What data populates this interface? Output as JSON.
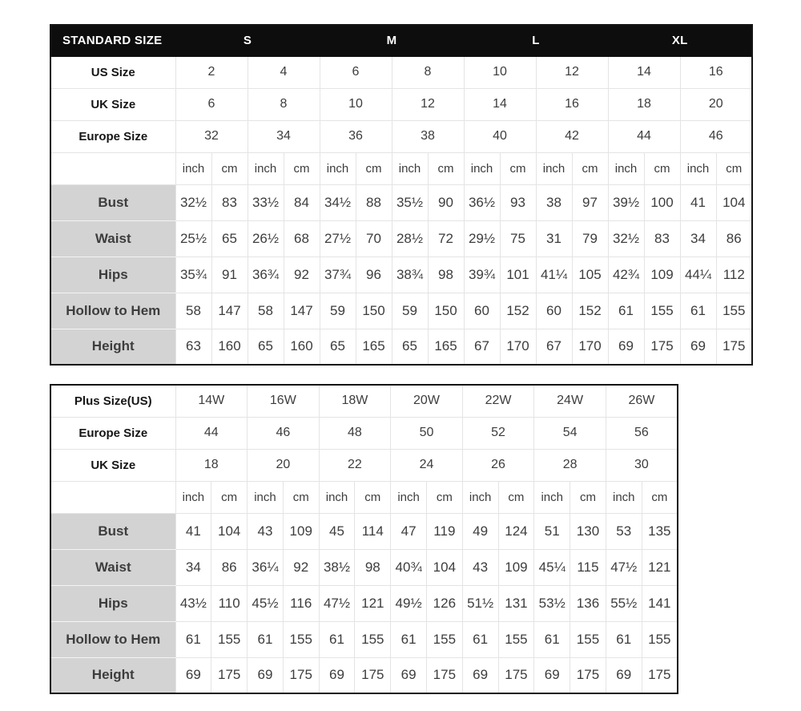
{
  "colors": {
    "header_bg": "#0d0d0d",
    "header_text": "#ffffff",
    "label_bg": "#d3d3d3",
    "label_text": "#161616",
    "value_text": "#3d3d3d",
    "grid_line": "#e4e4e4",
    "outer_border": "#141414"
  },
  "standard_table": {
    "title": "STANDARD SIZE",
    "size_groups": [
      "S",
      "M",
      "L",
      "XL"
    ],
    "size_rows": [
      {
        "label": "US Size",
        "values": [
          "2",
          "4",
          "6",
          "8",
          "10",
          "12",
          "14",
          "16"
        ]
      },
      {
        "label": "UK Size",
        "values": [
          "6",
          "8",
          "10",
          "12",
          "14",
          "16",
          "18",
          "20"
        ]
      },
      {
        "label": "Europe Size",
        "values": [
          "32",
          "34",
          "36",
          "38",
          "40",
          "42",
          "44",
          "46"
        ]
      }
    ],
    "units": [
      "inch",
      "cm"
    ],
    "measure_rows": [
      {
        "label": "Bust",
        "values": [
          "32½",
          "83",
          "33½",
          "84",
          "34½",
          "88",
          "35½",
          "90",
          "36½",
          "93",
          "38",
          "97",
          "39½",
          "100",
          "41",
          "104"
        ]
      },
      {
        "label": "Waist",
        "values": [
          "25½",
          "65",
          "26½",
          "68",
          "27½",
          "70",
          "28½",
          "72",
          "29½",
          "75",
          "31",
          "79",
          "32½",
          "83",
          "34",
          "86"
        ]
      },
      {
        "label": "Hips",
        "values": [
          "35¾",
          "91",
          "36¾",
          "92",
          "37¾",
          "96",
          "38¾",
          "98",
          "39¾",
          "101",
          "41¼",
          "105",
          "42¾",
          "109",
          "44¼",
          "112"
        ]
      },
      {
        "label": "Hollow to Hem",
        "values": [
          "58",
          "147",
          "58",
          "147",
          "59",
          "150",
          "59",
          "150",
          "60",
          "152",
          "60",
          "152",
          "61",
          "155",
          "61",
          "155"
        ]
      },
      {
        "label": "Height",
        "values": [
          "63",
          "160",
          "65",
          "160",
          "65",
          "165",
          "65",
          "165",
          "67",
          "170",
          "67",
          "170",
          "69",
          "175",
          "69",
          "175"
        ]
      }
    ]
  },
  "plus_table": {
    "size_rows": [
      {
        "label": "Plus Size(US)",
        "values": [
          "14W",
          "16W",
          "18W",
          "20W",
          "22W",
          "24W",
          "26W"
        ]
      },
      {
        "label": "Europe Size",
        "values": [
          "44",
          "46",
          "48",
          "50",
          "52",
          "54",
          "56"
        ]
      },
      {
        "label": "UK Size",
        "values": [
          "18",
          "20",
          "22",
          "24",
          "26",
          "28",
          "30"
        ]
      }
    ],
    "units": [
      "inch",
      "cm"
    ],
    "measure_rows": [
      {
        "label": "Bust",
        "values": [
          "41",
          "104",
          "43",
          "109",
          "45",
          "114",
          "47",
          "119",
          "49",
          "124",
          "51",
          "130",
          "53",
          "135"
        ]
      },
      {
        "label": "Waist",
        "values": [
          "34",
          "86",
          "36¼",
          "92",
          "38½",
          "98",
          "40¾",
          "104",
          "43",
          "109",
          "45¼",
          "115",
          "47½",
          "121"
        ]
      },
      {
        "label": "Hips",
        "values": [
          "43½",
          "110",
          "45½",
          "116",
          "47½",
          "121",
          "49½",
          "126",
          "51½",
          "131",
          "53½",
          "136",
          "55½",
          "141"
        ]
      },
      {
        "label": "Hollow to Hem",
        "values": [
          "61",
          "155",
          "61",
          "155",
          "61",
          "155",
          "61",
          "155",
          "61",
          "155",
          "61",
          "155",
          "61",
          "155"
        ]
      },
      {
        "label": "Height",
        "values": [
          "69",
          "175",
          "69",
          "175",
          "69",
          "175",
          "69",
          "175",
          "69",
          "175",
          "69",
          "175",
          "69",
          "175"
        ]
      }
    ]
  }
}
